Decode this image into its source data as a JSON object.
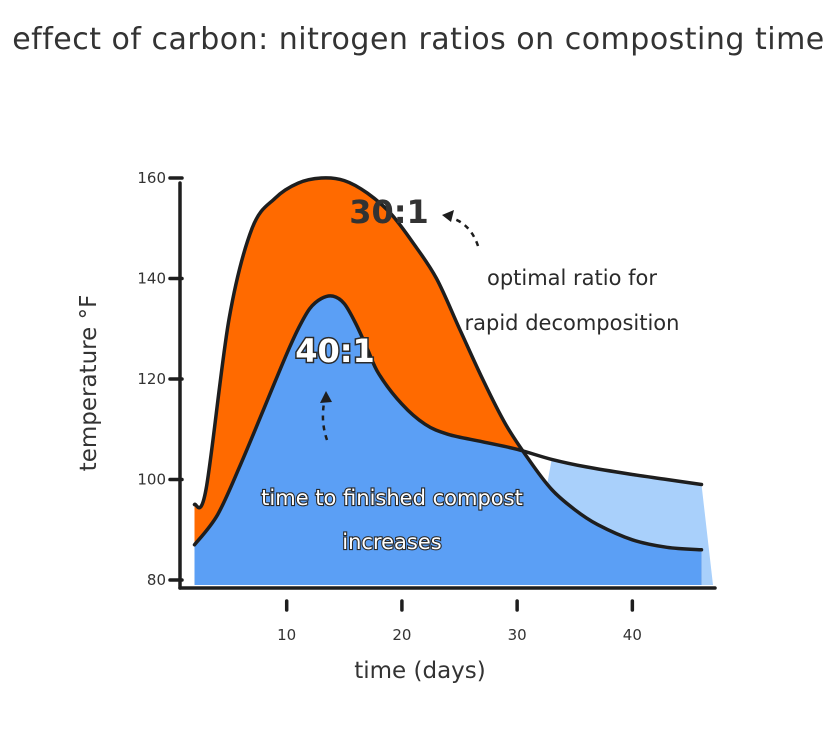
{
  "chart_data": {
    "type": "area",
    "title": "effect of carbon: nitrogen ratios on composting time",
    "xlabel": "time (days)",
    "ylabel": "temperature °F",
    "xlim": [
      1,
      47
    ],
    "ylim": [
      79,
      162
    ],
    "xticks": [
      10,
      20,
      30,
      40
    ],
    "yticks": [
      80,
      100,
      120,
      140,
      160
    ],
    "grid": false,
    "series": [
      {
        "name": "30:1",
        "color": "#ff6a00",
        "x": [
          2,
          3,
          5,
          7,
          9,
          11,
          13,
          15,
          17,
          19,
          21,
          23,
          25,
          27,
          29,
          31,
          33,
          35,
          37,
          40,
          43,
          46
        ],
        "y": [
          95,
          98,
          132,
          150,
          156,
          159,
          160,
          159.5,
          157,
          153,
          147,
          140,
          130,
          120,
          111,
          104,
          98,
          94,
          91,
          88,
          86.5,
          86
        ]
      },
      {
        "name": "40:1",
        "color": "#5b9ff5",
        "x": [
          2,
          4,
          6,
          8,
          10,
          11,
          12,
          13,
          14,
          15,
          16,
          17,
          18,
          20,
          22,
          24,
          27,
          30,
          33,
          36,
          40,
          43,
          46
        ],
        "y": [
          87,
          93,
          103,
          114,
          125,
          130,
          134,
          136,
          136.5,
          135,
          131,
          126,
          121,
          115,
          111,
          109,
          107.5,
          106,
          104,
          102.5,
          101,
          100,
          99
        ]
      }
    ],
    "annotations": {
      "optimal_line1": "optimal ratio for",
      "optimal_line2": "rapid decomposition",
      "time_line1": "time to finished compost",
      "time_line2": "increases"
    }
  }
}
